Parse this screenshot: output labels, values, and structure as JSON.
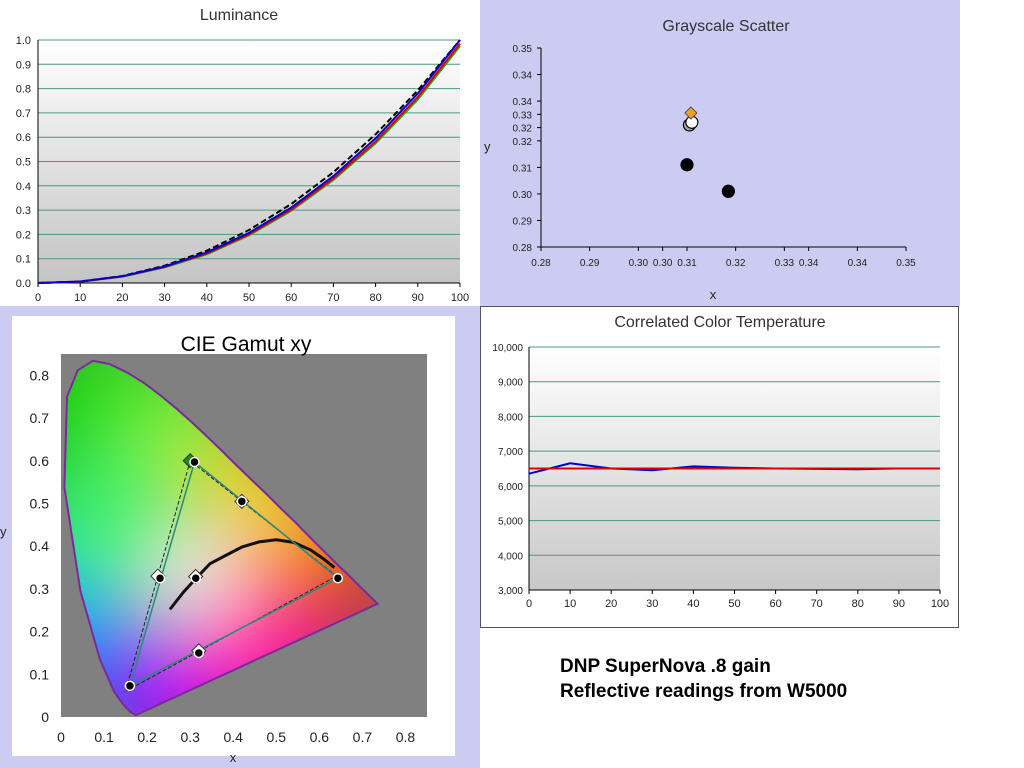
{
  "colors": {
    "scatter_bg": "#ccccf2",
    "series_blue": "#0000cc",
    "series_red": "#e00000",
    "series_green": "#22aa22",
    "gray_point": "#aaaaaa",
    "orange_point": "#f0a020"
  },
  "note": {
    "line1": "DNP SuperNova .8 gain",
    "line2": "Reflective readings from W5000"
  },
  "chart_data": [
    {
      "id": "luminance",
      "type": "line",
      "title": "Luminance",
      "xlabel": "",
      "ylabel": "",
      "xlim": [
        0,
        100
      ],
      "ylim": [
        0,
        1
      ],
      "x_ticks": [
        "0",
        "10",
        "20",
        "30",
        "40",
        "50",
        "60",
        "70",
        "80",
        "90",
        "100"
      ],
      "y_ticks": [
        "0.0",
        "0.1",
        "0.2",
        "0.3",
        "0.4",
        "0.5",
        "0.6",
        "0.7",
        "0.8",
        "0.9",
        "1.0"
      ],
      "grid": true,
      "x": [
        0,
        10,
        20,
        30,
        40,
        50,
        60,
        70,
        80,
        90,
        100
      ],
      "series": [
        {
          "color": "#000000",
          "dashed": true,
          "values": [
            0,
            0.006,
            0.029,
            0.071,
            0.133,
            0.218,
            0.325,
            0.456,
            0.612,
            0.793,
            1.0
          ]
        },
        {
          "color": "#22aa22",
          "values": [
            0,
            0.005,
            0.026,
            0.064,
            0.118,
            0.196,
            0.297,
            0.424,
            0.575,
            0.755,
            0.975
          ]
        },
        {
          "color": "#e00000",
          "values": [
            0,
            0.005,
            0.027,
            0.066,
            0.121,
            0.2,
            0.302,
            0.43,
            0.582,
            0.765,
            0.985
          ]
        },
        {
          "color": "#0000cc",
          "values": [
            0,
            0.006,
            0.028,
            0.068,
            0.126,
            0.206,
            0.31,
            0.44,
            0.595,
            0.78,
            1.0
          ]
        }
      ]
    },
    {
      "id": "grayscale-scatter",
      "type": "scatter",
      "title": "Grayscale Scatter",
      "xlabel": "x",
      "ylabel": "y",
      "xlim": [
        0.28,
        0.355
      ],
      "ylim": [
        0.28,
        0.355
      ],
      "x_tick_values": [
        0.28,
        0.29,
        0.3,
        0.305,
        0.31,
        0.32,
        0.33,
        0.335,
        0.345,
        0.355
      ],
      "x_ticks": [
        "0.28",
        "0.29",
        "0.30",
        "0.30",
        "0.31",
        "0.32",
        "0.33",
        "0.34",
        "0.34",
        "0.35"
      ],
      "y_tick_values": [
        0.28,
        0.29,
        0.3,
        0.31,
        0.32,
        0.325,
        0.33,
        0.335,
        0.345,
        0.355
      ],
      "y_ticks": [
        "0.28",
        "0.29",
        "0.30",
        "0.31",
        "0.32",
        "0.32",
        "0.33",
        "0.34",
        "0.34",
        "0.35"
      ],
      "grid": false,
      "points": [
        {
          "x": 0.3185,
          "y": 0.301,
          "color": "#000000"
        },
        {
          "x": 0.31,
          "y": 0.311,
          "color": "#000000"
        },
        {
          "x": 0.3105,
          "y": 0.326,
          "color": "#aaaaaa"
        },
        {
          "x": 0.311,
          "y": 0.327,
          "color": "#ffffff"
        },
        {
          "x": 0.3108,
          "y": 0.3305,
          "color": "#f0a020",
          "shape": "diamond"
        }
      ]
    },
    {
      "id": "cie-gamut",
      "type": "scatter",
      "title": "CIE Gamut xy",
      "xlabel": "x",
      "ylabel": "y",
      "xlim": [
        0,
        0.85
      ],
      "ylim": [
        0,
        0.85
      ],
      "x_tick_values": [
        0,
        0.1,
        0.2,
        0.3,
        0.4,
        0.5,
        0.6,
        0.7,
        0.8
      ],
      "x_ticks": [
        "0",
        "0.1",
        "0.2",
        "0.3",
        "0.4",
        "0.5",
        "0.6",
        "0.7",
        "0.8"
      ],
      "y_tick_values": [
        0,
        0.1,
        0.2,
        0.3,
        0.4,
        0.5,
        0.6,
        0.7,
        0.8
      ],
      "y_ticks": [
        "0",
        "0.1",
        "0.2",
        "0.3",
        "0.4",
        "0.5",
        "0.6",
        "0.7",
        "0.8"
      ],
      "reference_gamut": [
        {
          "x": 0.64,
          "y": 0.33
        },
        {
          "x": 0.3,
          "y": 0.6
        },
        {
          "x": 0.15,
          "y": 0.06
        }
      ],
      "measured_gamut": [
        {
          "x": 0.643,
          "y": 0.325
        },
        {
          "x": 0.31,
          "y": 0.597
        },
        {
          "x": 0.16,
          "y": 0.073
        }
      ],
      "reference_secondaries": [
        {
          "x": 0.42,
          "y": 0.505
        },
        {
          "x": 0.225,
          "y": 0.33
        },
        {
          "x": 0.32,
          "y": 0.155
        },
        {
          "x": 0.3127,
          "y": 0.329
        }
      ],
      "measured_secondaries": [
        {
          "x": 0.42,
          "y": 0.505
        },
        {
          "x": 0.23,
          "y": 0.325
        },
        {
          "x": 0.32,
          "y": 0.15
        },
        {
          "x": 0.313,
          "y": 0.325
        }
      ],
      "blackbody_locus": [
        {
          "x": 0.253,
          "y": 0.252
        },
        {
          "x": 0.285,
          "y": 0.293
        },
        {
          "x": 0.313,
          "y": 0.324
        },
        {
          "x": 0.346,
          "y": 0.359
        },
        {
          "x": 0.38,
          "y": 0.377
        },
        {
          "x": 0.42,
          "y": 0.398
        },
        {
          "x": 0.46,
          "y": 0.41
        },
        {
          "x": 0.5,
          "y": 0.415
        },
        {
          "x": 0.54,
          "y": 0.409
        },
        {
          "x": 0.58,
          "y": 0.391
        },
        {
          "x": 0.61,
          "y": 0.37
        },
        {
          "x": 0.635,
          "y": 0.35
        }
      ]
    },
    {
      "id": "cct",
      "type": "line",
      "title": "Correlated Color Temperature",
      "xlabel": "",
      "ylabel": "",
      "xlim": [
        0,
        100
      ],
      "ylim": [
        3000,
        10000
      ],
      "x_ticks": [
        "0",
        "10",
        "20",
        "30",
        "40",
        "50",
        "60",
        "70",
        "80",
        "90",
        "100"
      ],
      "y_ticks": [
        "3,000",
        "4,000",
        "5,000",
        "6,000",
        "7,000",
        "8,000",
        "9,000",
        "10,000"
      ],
      "grid": true,
      "x": [
        0,
        10,
        20,
        30,
        40,
        50,
        60,
        70,
        80,
        90,
        100
      ],
      "series": [
        {
          "color": "#0000cc",
          "values": [
            6350,
            6650,
            6500,
            6450,
            6560,
            6520,
            6500,
            6490,
            6480,
            6500,
            6500
          ]
        },
        {
          "color": "#e00000",
          "values": [
            6500,
            6500,
            6500,
            6500,
            6500,
            6500,
            6500,
            6500,
            6500,
            6500,
            6500
          ]
        }
      ]
    }
  ]
}
